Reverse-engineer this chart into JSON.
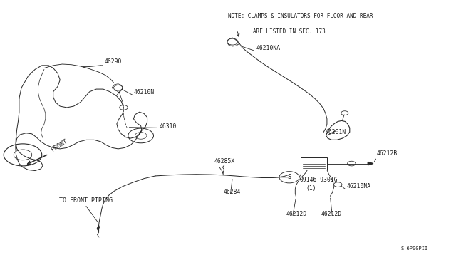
{
  "bg_color": "#ffffff",
  "line_color": "#2a2a2a",
  "text_color": "#1a1a1a",
  "fig_width": 6.4,
  "fig_height": 3.72,
  "note_line1": "NOTE: CLAMPS & INSULATORS FOR FLOOR AND REAR",
  "note_line2": "ARE LISTED IN SEC. 173",
  "diagram_id": "S-6P00PII"
}
